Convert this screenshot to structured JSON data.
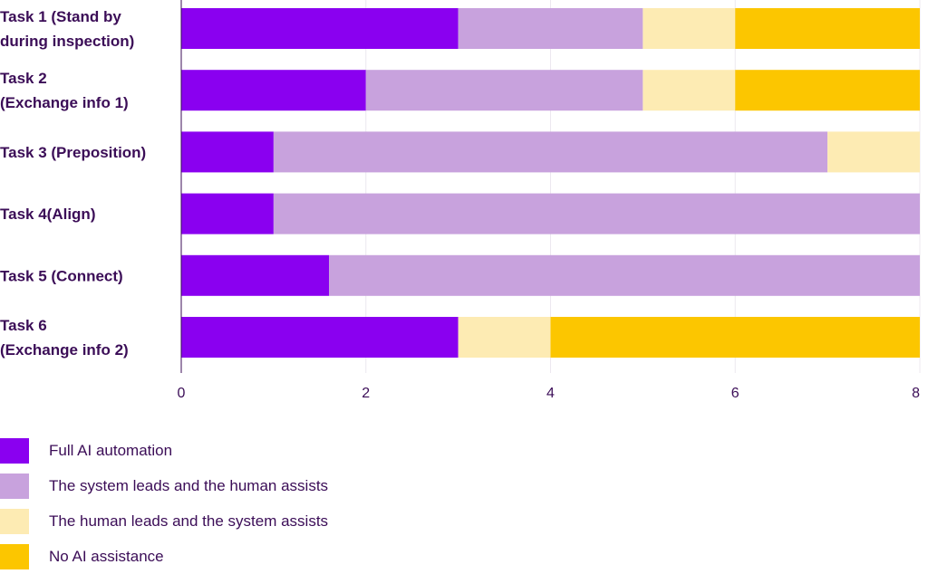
{
  "chart_data": {
    "type": "bar",
    "orientation": "horizontal",
    "stacked": true,
    "categories": [
      [
        "Task 1 (Stand by",
        "during inspection)"
      ],
      [
        "Task 2",
        "(Exchange info 1)"
      ],
      [
        "Task 3 (Preposition)"
      ],
      [
        "Task 4(Align)"
      ],
      [
        "Task 5 (Connect)"
      ],
      [
        "Task 6",
        "(Exchange info 2)"
      ]
    ],
    "series": [
      {
        "name": "Full AI automation",
        "color": "#8a00f0",
        "values": [
          3,
          2,
          1,
          1,
          1.6,
          3
        ]
      },
      {
        "name": "The system leads and the human assists",
        "color": "#c8a2dd",
        "values": [
          2,
          3,
          6,
          7,
          6.4,
          0
        ]
      },
      {
        "name": "The human leads and the system assists",
        "color": "#fdebb3",
        "values": [
          1,
          1,
          1,
          0,
          0,
          1
        ]
      },
      {
        "name": "No AI assistance",
        "color": "#fcc600",
        "values": [
          2,
          2,
          0,
          0,
          0,
          4
        ]
      }
    ],
    "xlim": [
      0,
      8
    ],
    "xticks": [
      "0",
      "2",
      "4",
      "6",
      "8"
    ],
    "title": "",
    "xlabel": "",
    "ylabel": "",
    "legend_position": "bottom-left"
  }
}
